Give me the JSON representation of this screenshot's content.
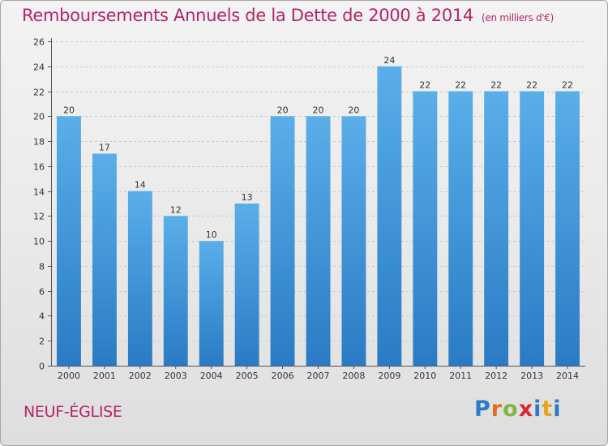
{
  "header": {
    "title": "Remboursements Annuels de la Dette de 2000 à 2014",
    "unit": "(en milliers d'€)"
  },
  "commune": "NEUF-ÉGLISE",
  "logo": {
    "text": "Proxiti",
    "letters": [
      "P",
      "r",
      "o",
      "x",
      "i",
      "t",
      "i"
    ]
  },
  "colors": {
    "bar": "#3f94dc",
    "bar_light": "#5aaee9",
    "title": "#b32468"
  },
  "chart_data": {
    "type": "bar",
    "title": "Remboursements Annuels de la Dette de 2000 à 2014",
    "xlabel": "",
    "ylabel": "",
    "categories": [
      "2000",
      "2001",
      "2002",
      "2003",
      "2004",
      "2005",
      "2006",
      "2007",
      "2008",
      "2009",
      "2010",
      "2011",
      "2012",
      "2013",
      "2014"
    ],
    "values": [
      20,
      17,
      14,
      12,
      10,
      13,
      20,
      20,
      20,
      24,
      22,
      22,
      22,
      22,
      22
    ],
    "ylim": [
      0,
      26
    ],
    "yticks": [
      0,
      2,
      4,
      6,
      8,
      10,
      12,
      14,
      16,
      18,
      20,
      22,
      24,
      26
    ],
    "grid": true
  }
}
